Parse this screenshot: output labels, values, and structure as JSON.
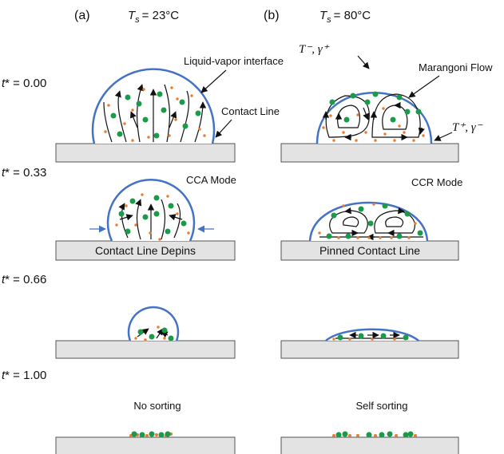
{
  "panels": [
    {
      "label": "(a)",
      "temperature": {
        "symbol": "T",
        "subscript": "s",
        "value": "= 23°C"
      },
      "annotations": {
        "interface": "Liquid-vapor interface",
        "contact_line": "Contact Line",
        "mode": "CCA Mode",
        "stage_note": "Contact Line Depins",
        "result": "No sorting"
      }
    },
    {
      "label": "(b)",
      "temperature": {
        "symbol": "T",
        "subscript": "s",
        "value": "= 80°C"
      },
      "annotations": {
        "flow": "Marangoni Flow",
        "top_condition": "T⁻, γ⁺",
        "edge_condition": "T⁺, γ⁻",
        "mode": "CCR Mode",
        "stage_note": "Pinned Contact Line",
        "result": "Self sorting"
      }
    }
  ],
  "times": [
    {
      "symbol": "t",
      "value": "* = 0.00"
    },
    {
      "symbol": "t",
      "value": "* = 0.33"
    },
    {
      "symbol": "t",
      "value": "* = 0.66"
    },
    {
      "symbol": "t",
      "value": "* = 1.00"
    }
  ]
}
